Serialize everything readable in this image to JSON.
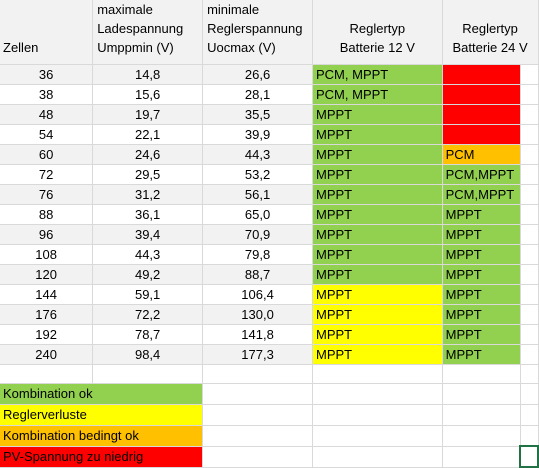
{
  "colors": {
    "green": "#92d050",
    "yellow": "#ffff00",
    "orange": "#ffc000",
    "red": "#ff0000",
    "band": "#f2f2f2",
    "selection": "#217346"
  },
  "header": {
    "zellen": [
      "",
      "",
      "Zellen"
    ],
    "lade": [
      "maximale",
      "Ladespannung",
      "Umppmin (V)"
    ],
    "regler": [
      "minimale",
      "Reglerspannung",
      "Uocmax (V)"
    ],
    "typ12": [
      "",
      "Reglertyp",
      "Batterie 12 V"
    ],
    "typ24": [
      "",
      "Reglertyp",
      "Batterie 24 V"
    ]
  },
  "rows": [
    {
      "zellen": "36",
      "lade": "14,8",
      "regler": "26,6",
      "typ12": "PCM, MPPT",
      "c12": "green",
      "typ24": "",
      "c24": "red"
    },
    {
      "zellen": "38",
      "lade": "15,6",
      "regler": "28,1",
      "typ12": "PCM, MPPT",
      "c12": "green",
      "typ24": "",
      "c24": "red"
    },
    {
      "zellen": "48",
      "lade": "19,7",
      "regler": "35,5",
      "typ12": "MPPT",
      "c12": "green",
      "typ24": "",
      "c24": "red"
    },
    {
      "zellen": "54",
      "lade": "22,1",
      "regler": "39,9",
      "typ12": "MPPT",
      "c12": "green",
      "typ24": "",
      "c24": "red"
    },
    {
      "zellen": "60",
      "lade": "24,6",
      "regler": "44,3",
      "typ12": "MPPT",
      "c12": "green",
      "typ24": "PCM",
      "c24": "orange"
    },
    {
      "zellen": "72",
      "lade": "29,5",
      "regler": "53,2",
      "typ12": "MPPT",
      "c12": "green",
      "typ24": "PCM,MPPT",
      "c24": "green"
    },
    {
      "zellen": "76",
      "lade": "31,2",
      "regler": "56,1",
      "typ12": "MPPT",
      "c12": "green",
      "typ24": "PCM,MPPT",
      "c24": "green"
    },
    {
      "zellen": "88",
      "lade": "36,1",
      "regler": "65,0",
      "typ12": "MPPT",
      "c12": "green",
      "typ24": "MPPT",
      "c24": "green"
    },
    {
      "zellen": "96",
      "lade": "39,4",
      "regler": "70,9",
      "typ12": "MPPT",
      "c12": "green",
      "typ24": "MPPT",
      "c24": "green"
    },
    {
      "zellen": "108",
      "lade": "44,3",
      "regler": "79,8",
      "typ12": "MPPT",
      "c12": "green",
      "typ24": "MPPT",
      "c24": "green"
    },
    {
      "zellen": "120",
      "lade": "49,2",
      "regler": "88,7",
      "typ12": "MPPT",
      "c12": "green",
      "typ24": "MPPT",
      "c24": "green"
    },
    {
      "zellen": "144",
      "lade": "59,1",
      "regler": "106,4",
      "typ12": "MPPT",
      "c12": "yellow",
      "typ24": "MPPT",
      "c24": "green"
    },
    {
      "zellen": "176",
      "lade": "72,2",
      "regler": "130,0",
      "typ12": "MPPT",
      "c12": "yellow",
      "typ24": "MPPT",
      "c24": "green"
    },
    {
      "zellen": "192",
      "lade": "78,7",
      "regler": "141,8",
      "typ12": "MPPT",
      "c12": "yellow",
      "typ24": "MPPT",
      "c24": "green"
    },
    {
      "zellen": "240",
      "lade": "98,4",
      "regler": "177,3",
      "typ12": "MPPT",
      "c12": "yellow",
      "typ24": "MPPT",
      "c24": "green"
    }
  ],
  "legend": [
    {
      "label": "Kombination ok",
      "color": "green"
    },
    {
      "label": "Reglerverluste",
      "color": "yellow"
    },
    {
      "label": "Kombination bedingt ok",
      "color": "orange"
    },
    {
      "label": "PV-Spannung zu niedrig",
      "color": "red"
    }
  ]
}
